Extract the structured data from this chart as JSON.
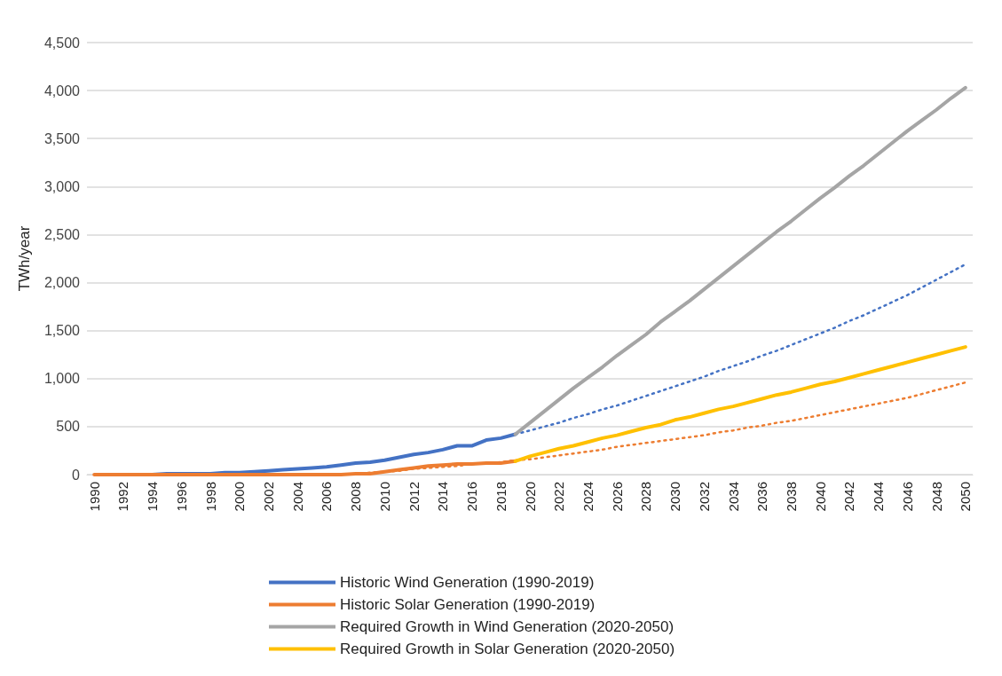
{
  "chart_data": {
    "type": "line",
    "ylabel": "TWh/year",
    "categories": [
      "1990",
      null,
      "1992",
      null,
      "1994",
      null,
      "1996",
      null,
      "1998",
      null,
      "2000",
      null,
      "2002",
      null,
      "2004",
      null,
      "2006",
      null,
      "2008",
      null,
      "2010",
      null,
      "2012",
      null,
      "2014",
      null,
      "2016",
      null,
      "2018",
      null,
      "2020",
      null,
      "2022",
      null,
      "2024",
      null,
      "2026",
      null,
      "2028",
      null,
      "2030",
      null,
      "2032",
      null,
      "2034",
      null,
      "2036",
      null,
      "2038",
      null,
      "2040",
      null,
      "2042",
      null,
      "2044",
      null,
      "2046",
      null,
      "2048",
      null,
      "2050"
    ],
    "ylim": [
      0,
      4500
    ],
    "yticks": [
      0,
      {
        "value": 500,
        "label": "500"
      },
      {
        "value": 1000,
        "label": "1,000"
      },
      {
        "value": 1500,
        "label": "1,500"
      },
      {
        "value": 2000,
        "label": "2,000"
      },
      {
        "value": 2500,
        "label": "2,500"
      },
      {
        "value": 3000,
        "label": "3,000"
      },
      {
        "value": 3500,
        "label": "3,500"
      },
      {
        "value": 4000,
        "label": "4,000"
      },
      {
        "value": 4500,
        "label": "4,500"
      }
    ],
    "grid": "y",
    "legend": "bottom",
    "marker": "none",
    "series": [
      {
        "name": "Historic Wind Generation (1990-2019)",
        "color": "#4472c4",
        "line_style": "solid",
        "values": [
          null,
          null,
          0,
          0,
          0,
          10,
          10,
          10,
          10,
          20,
          20,
          30,
          40,
          50,
          60,
          70,
          80,
          100,
          120,
          130,
          150,
          180,
          210,
          230,
          260,
          300,
          300,
          360,
          380,
          420,
          null,
          null,
          null,
          null,
          null,
          null,
          null,
          null,
          null,
          null,
          null,
          null,
          null,
          null,
          null,
          null,
          null,
          null,
          null,
          null,
          null,
          null,
          null,
          null,
          null,
          null,
          null,
          null,
          null,
          null,
          null
        ]
      },
      {
        "name": "Historic Solar Generation (1990-2019)",
        "color": "#ed7d31",
        "line_style": "solid",
        "values": [
          0,
          0,
          0,
          0,
          0,
          0,
          0,
          0,
          0,
          0,
          0,
          0,
          0,
          0,
          0,
          0,
          0,
          0,
          10,
          10,
          30,
          50,
          70,
          90,
          100,
          110,
          110,
          120,
          120,
          140,
          null,
          null,
          null,
          null,
          null,
          null,
          null,
          null,
          null,
          null,
          null,
          null,
          null,
          null,
          null,
          null,
          null,
          null,
          null,
          null,
          null,
          null,
          null,
          null,
          null,
          null,
          null,
          null,
          null,
          null,
          null
        ]
      },
      {
        "name": "Required Growth in Wind Generation (2020-2050)",
        "color": "#a5a5a5",
        "line_style": "solid",
        "values": [
          null,
          null,
          null,
          null,
          null,
          null,
          null,
          null,
          null,
          null,
          null,
          null,
          null,
          null,
          null,
          null,
          null,
          null,
          null,
          null,
          null,
          null,
          null,
          null,
          null,
          null,
          null,
          null,
          null,
          420,
          540,
          660,
          780,
          900,
          1010,
          1120,
          1240,
          1350,
          1460,
          1590,
          1700,
          1810,
          1930,
          2050,
          2170,
          2290,
          2410,
          2530,
          2640,
          2760,
          2880,
          2990,
          3110,
          3220,
          3340,
          3460,
          3580,
          3690,
          3800,
          3920,
          4030
        ]
      },
      {
        "name": "Required Growth in Solar Generation (2020-2050)",
        "color": "#ffc000",
        "line_style": "solid",
        "values": [
          null,
          null,
          null,
          null,
          null,
          null,
          null,
          null,
          null,
          null,
          null,
          null,
          null,
          null,
          null,
          null,
          null,
          null,
          null,
          null,
          null,
          null,
          null,
          null,
          null,
          null,
          null,
          null,
          null,
          140,
          190,
          230,
          270,
          300,
          340,
          380,
          410,
          450,
          490,
          520,
          570,
          600,
          640,
          680,
          710,
          750,
          790,
          830,
          860,
          900,
          940,
          970,
          1010,
          1050,
          1090,
          1130,
          1170,
          1210,
          1250,
          1290,
          1330
        ]
      },
      {
        "color": "#4472c4",
        "line_style": "dotted",
        "values": [
          null,
          null,
          null,
          null,
          null,
          null,
          null,
          null,
          null,
          null,
          null,
          null,
          null,
          null,
          null,
          null,
          null,
          null,
          null,
          null,
          null,
          null,
          null,
          null,
          null,
          null,
          null,
          null,
          null,
          420,
          460,
          500,
          540,
          590,
          630,
          680,
          720,
          770,
          820,
          870,
          920,
          970,
          1020,
          1080,
          1130,
          1180,
          1240,
          1290,
          1350,
          1410,
          1470,
          1530,
          1600,
          1660,
          1730,
          1800,
          1870,
          1950,
          2030,
          2110,
          2190
        ]
      },
      {
        "color": "#ed7d31",
        "line_style": "dotted",
        "values": [
          null,
          null,
          null,
          null,
          null,
          null,
          null,
          null,
          null,
          null,
          null,
          null,
          null,
          null,
          null,
          null,
          null,
          null,
          10,
          20,
          30,
          40,
          60,
          70,
          80,
          90,
          110,
          120,
          130,
          150,
          160,
          180,
          200,
          220,
          240,
          260,
          290,
          310,
          330,
          350,
          370,
          390,
          410,
          440,
          460,
          490,
          510,
          540,
          560,
          590,
          620,
          650,
          680,
          710,
          740,
          770,
          800,
          840,
          880,
          920,
          960
        ]
      }
    ]
  }
}
